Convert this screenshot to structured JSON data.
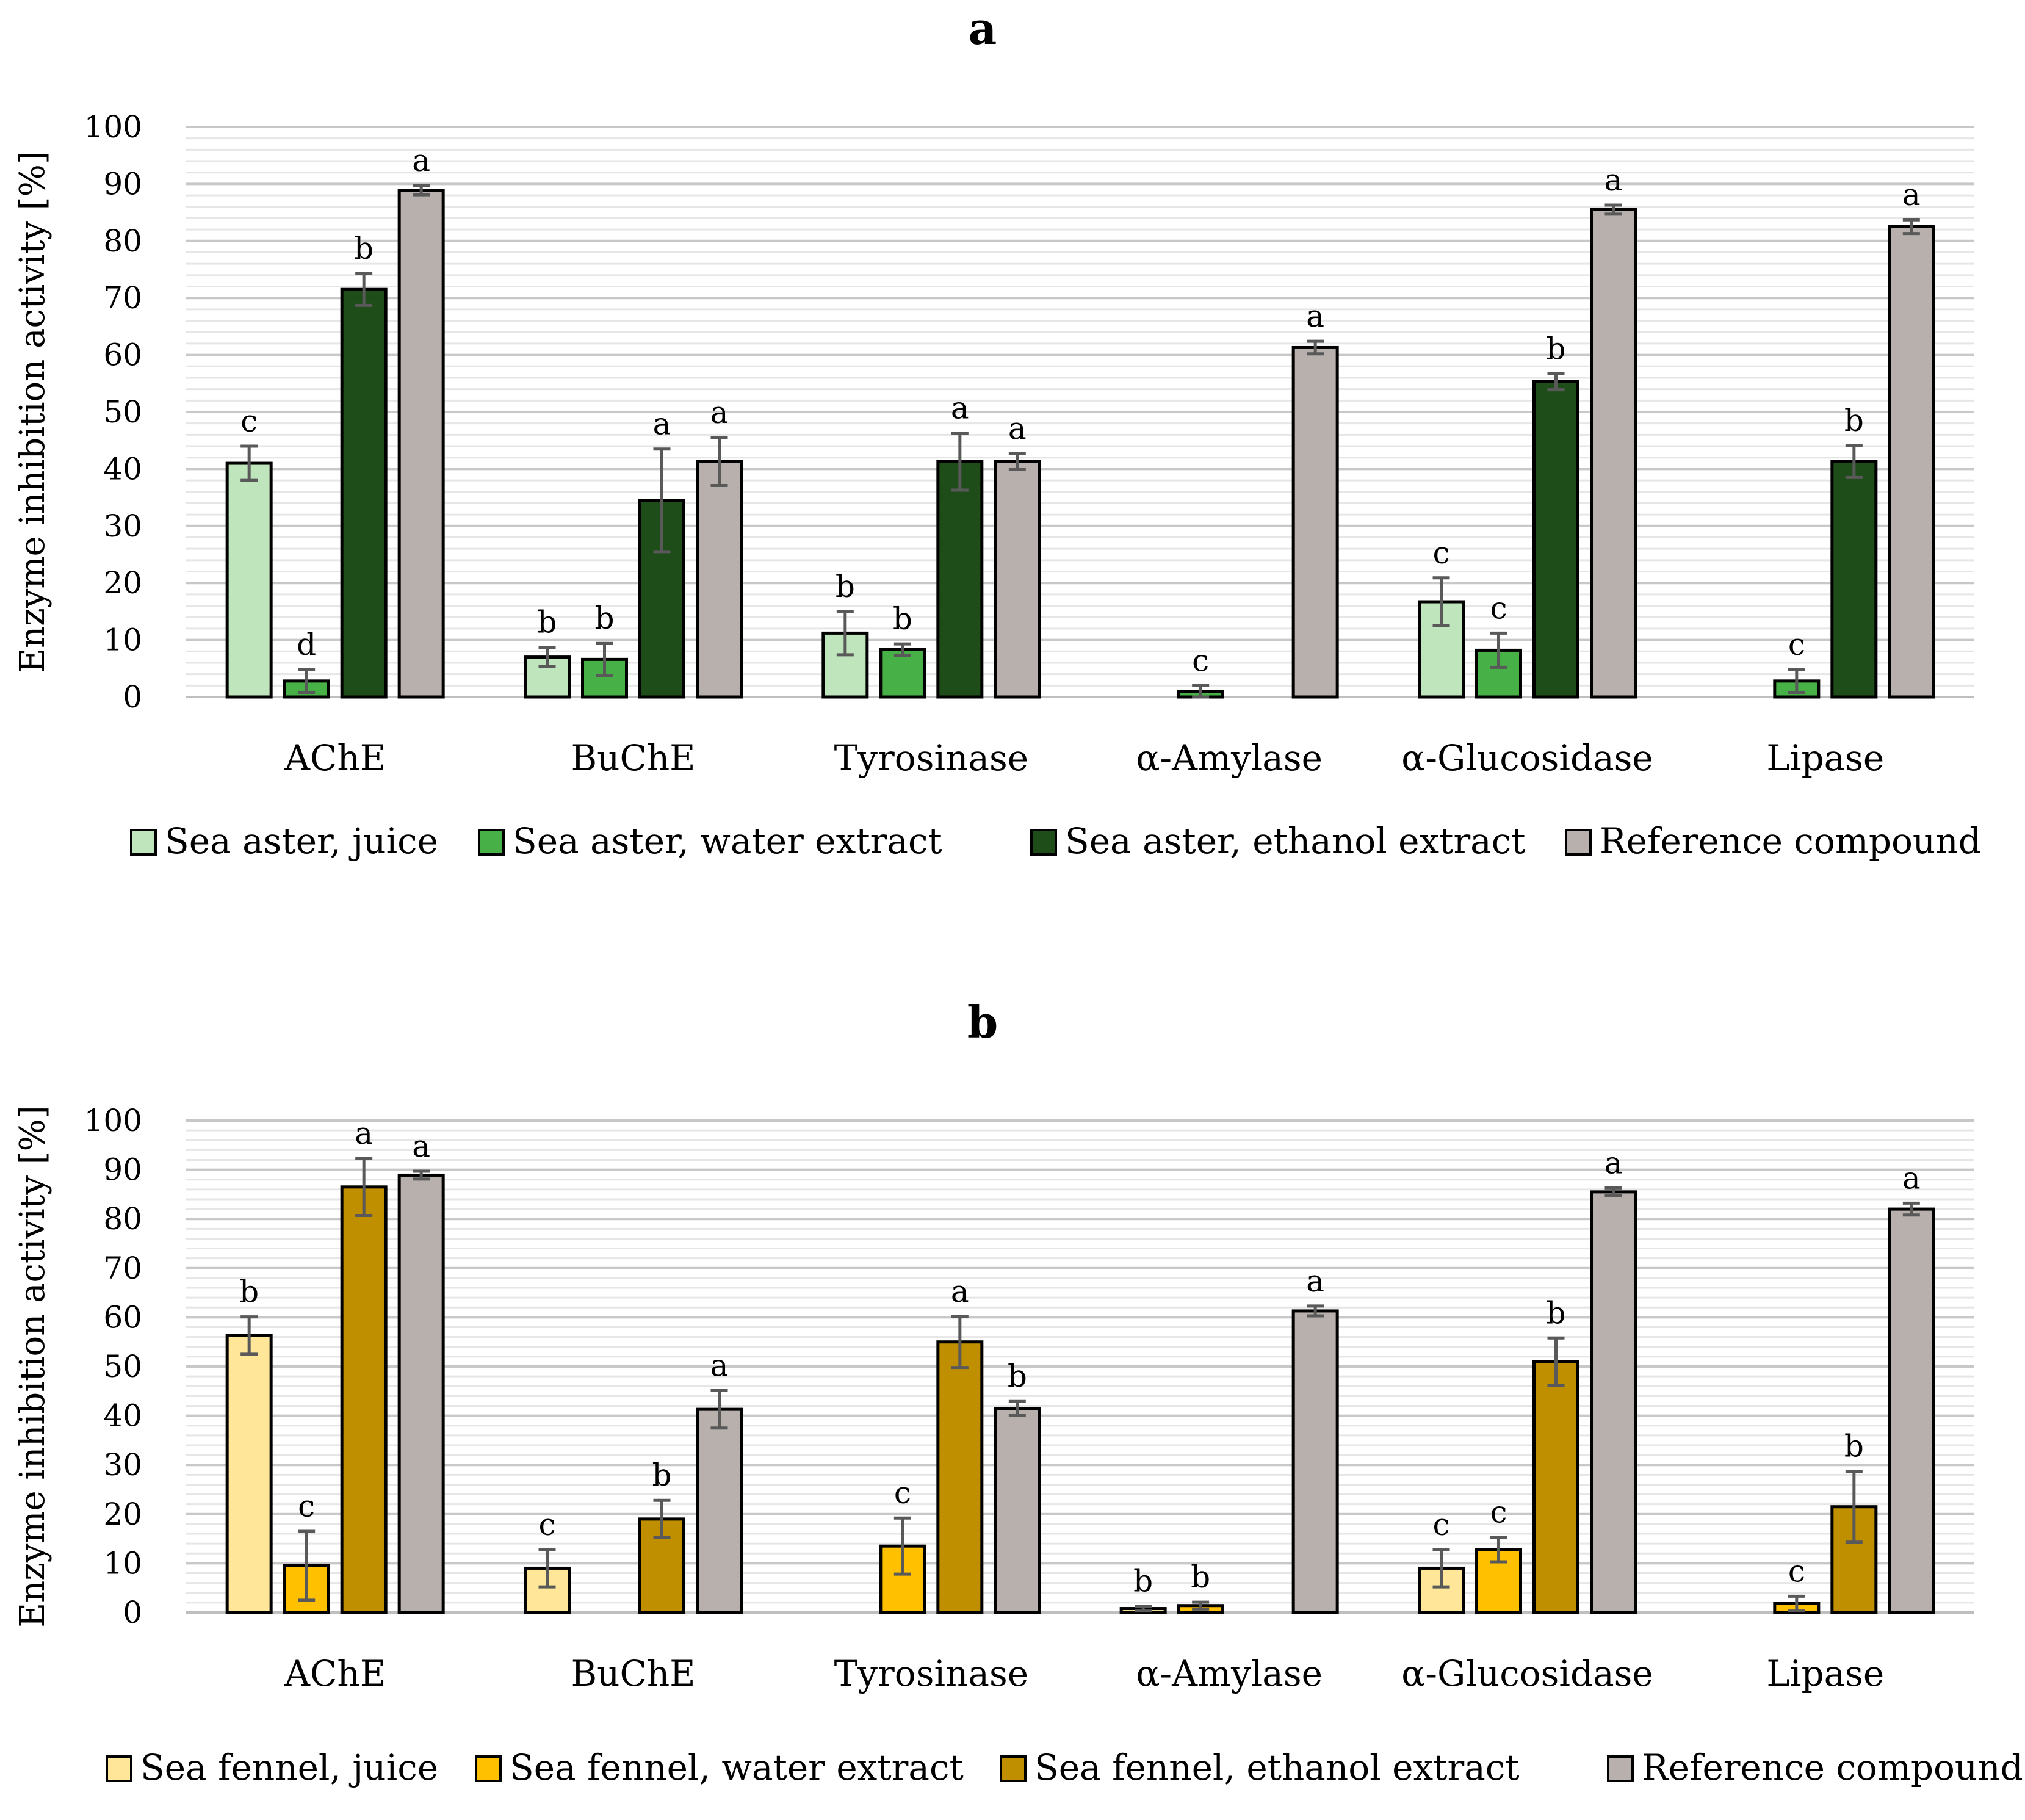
{
  "chart_data": [
    {
      "type": "bar",
      "panel_label": "a",
      "ylabel": "Enzyme inhibition activity [%]",
      "ylim": [
        0,
        100
      ],
      "yticks": [
        0,
        10,
        20,
        30,
        40,
        50,
        60,
        70,
        80,
        90,
        100
      ],
      "grid": true,
      "legend_position": "bottom",
      "categories": [
        "AChE",
        "BuChE",
        "Tyrosinase",
        "α-Amylase",
        "α-Glucosidase",
        "Lipase"
      ],
      "series": [
        {
          "name": "Sea aster, juice",
          "color": "#bfe5bc",
          "values": [
            41,
            7,
            11.2,
            null,
            16.7,
            null
          ],
          "errors": [
            3,
            1.7,
            3.8,
            null,
            4.2,
            null
          ],
          "labels": [
            "c",
            "b",
            "b",
            "",
            "c",
            ""
          ]
        },
        {
          "name": "Sea aster, water extract",
          "color": "#47b047",
          "values": [
            2.8,
            6.6,
            8.3,
            1,
            8.2,
            2.8
          ],
          "errors": [
            2,
            2.8,
            1,
            1,
            3,
            2
          ],
          "labels": [
            "d",
            "b",
            "b",
            "c",
            "c",
            "c"
          ]
        },
        {
          "name": "Sea aster, ethanol extract",
          "color": "#1e4d1a",
          "values": [
            71.5,
            34.5,
            41.3,
            null,
            55.3,
            41.3
          ],
          "errors": [
            2.8,
            9,
            5,
            null,
            1.4,
            2.8
          ],
          "labels": [
            "b",
            "a",
            "a",
            "",
            "b",
            "b"
          ]
        },
        {
          "name": "Reference compound",
          "color": "#b7b0ac",
          "values": [
            88.9,
            41.3,
            41.3,
            61.3,
            85.5,
            82.5
          ],
          "errors": [
            0.8,
            4.2,
            1.4,
            1.1,
            0.8,
            1.2
          ],
          "labels": [
            "a",
            "a",
            "a",
            "a",
            "a",
            "a"
          ]
        }
      ]
    },
    {
      "type": "bar",
      "panel_label": "b",
      "ylabel": "Enzyme inhibition activity [%]",
      "ylim": [
        0,
        100
      ],
      "yticks": [
        0,
        10,
        20,
        30,
        40,
        50,
        60,
        70,
        80,
        90,
        100
      ],
      "grid": true,
      "legend_position": "bottom",
      "categories": [
        "AChE",
        "BuChE",
        "Tyrosinase",
        "α-Amylase",
        "α-Glucosidase",
        "Lipase"
      ],
      "series": [
        {
          "name": "Sea fennel, juice",
          "color": "#ffe699",
          "values": [
            56.3,
            9,
            null,
            0.8,
            9,
            null
          ],
          "errors": [
            3.8,
            3.8,
            null,
            0.5,
            3.8,
            null
          ],
          "labels": [
            "b",
            "c",
            "",
            "b",
            "c",
            ""
          ]
        },
        {
          "name": "Sea fennel, water extract",
          "color": "#ffc000",
          "values": [
            9.5,
            null,
            13.5,
            1.4,
            12.8,
            1.8
          ],
          "errors": [
            7,
            null,
            5.7,
            0.7,
            2.5,
            1.5
          ],
          "labels": [
            "c",
            "",
            "c",
            "b",
            "c",
            "c"
          ]
        },
        {
          "name": "Sea fennel, ethanol extract",
          "color": "#bf8f00",
          "values": [
            86.5,
            19,
            55,
            null,
            51,
            21.5
          ],
          "errors": [
            5.8,
            3.8,
            5.2,
            null,
            4.8,
            7.2
          ],
          "labels": [
            "a",
            "b",
            "a",
            "",
            "b",
            "b"
          ]
        },
        {
          "name": "Reference compound",
          "color": "#b7b0ac",
          "values": [
            88.9,
            41.3,
            41.5,
            61.3,
            85.5,
            82
          ],
          "errors": [
            0.8,
            3.8,
            1.4,
            1,
            0.8,
            1.2
          ],
          "labels": [
            "a",
            "a",
            "b",
            "a",
            "a",
            "a"
          ]
        }
      ]
    }
  ]
}
